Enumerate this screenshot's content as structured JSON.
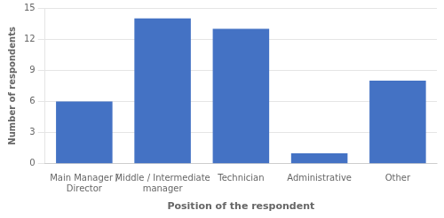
{
  "chart_data": {
    "type": "bar",
    "categories": [
      "Main Manager /\nDirector",
      "Middle / Intermediate\nmanager",
      "Technician",
      "Administrative",
      "Other"
    ],
    "values": [
      6,
      14,
      13,
      1,
      8
    ],
    "color": "#4472C4",
    "xlabel": "Position of the respondent",
    "ylabel": "Number of respondents",
    "ylim": [
      0,
      15
    ],
    "yticks": [
      0,
      3,
      6,
      9,
      12,
      15
    ],
    "grid": true
  }
}
